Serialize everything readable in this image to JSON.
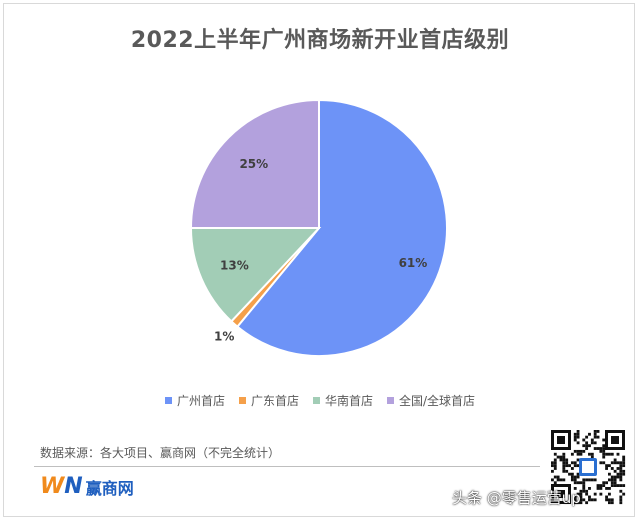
{
  "title": "2022上半年广州商场新开业首店级别",
  "chart_data": {
    "type": "pie",
    "title": "2022上半年广州商场新开业首店级别",
    "categories": [
      "广州首店",
      "广东首店",
      "华南首店",
      "全国/全球首店"
    ],
    "values": [
      61,
      1,
      13,
      25
    ],
    "value_labels": [
      "61%",
      "1%",
      "13%",
      "25%"
    ],
    "colors": [
      "#6d93f7",
      "#f5a04a",
      "#a2cdb6",
      "#b3a1dd"
    ],
    "legend_position": "bottom",
    "start_angle_deg": 0,
    "direction": "clockwise"
  },
  "legend": [
    {
      "label": "广州首店",
      "color": "#6d93f7"
    },
    {
      "label": "广东首店",
      "color": "#f5a04a"
    },
    {
      "label": "华南首店",
      "color": "#a2cdb6"
    },
    {
      "label": "全国/全球首店",
      "color": "#b3a1dd"
    }
  ],
  "source_note": "数据来源：各大项目、赢商网（不完全统计）",
  "logo": {
    "mark_w": "W",
    "mark_n": "N",
    "text": "赢商网"
  },
  "watermark": "头条 @零售运营up"
}
